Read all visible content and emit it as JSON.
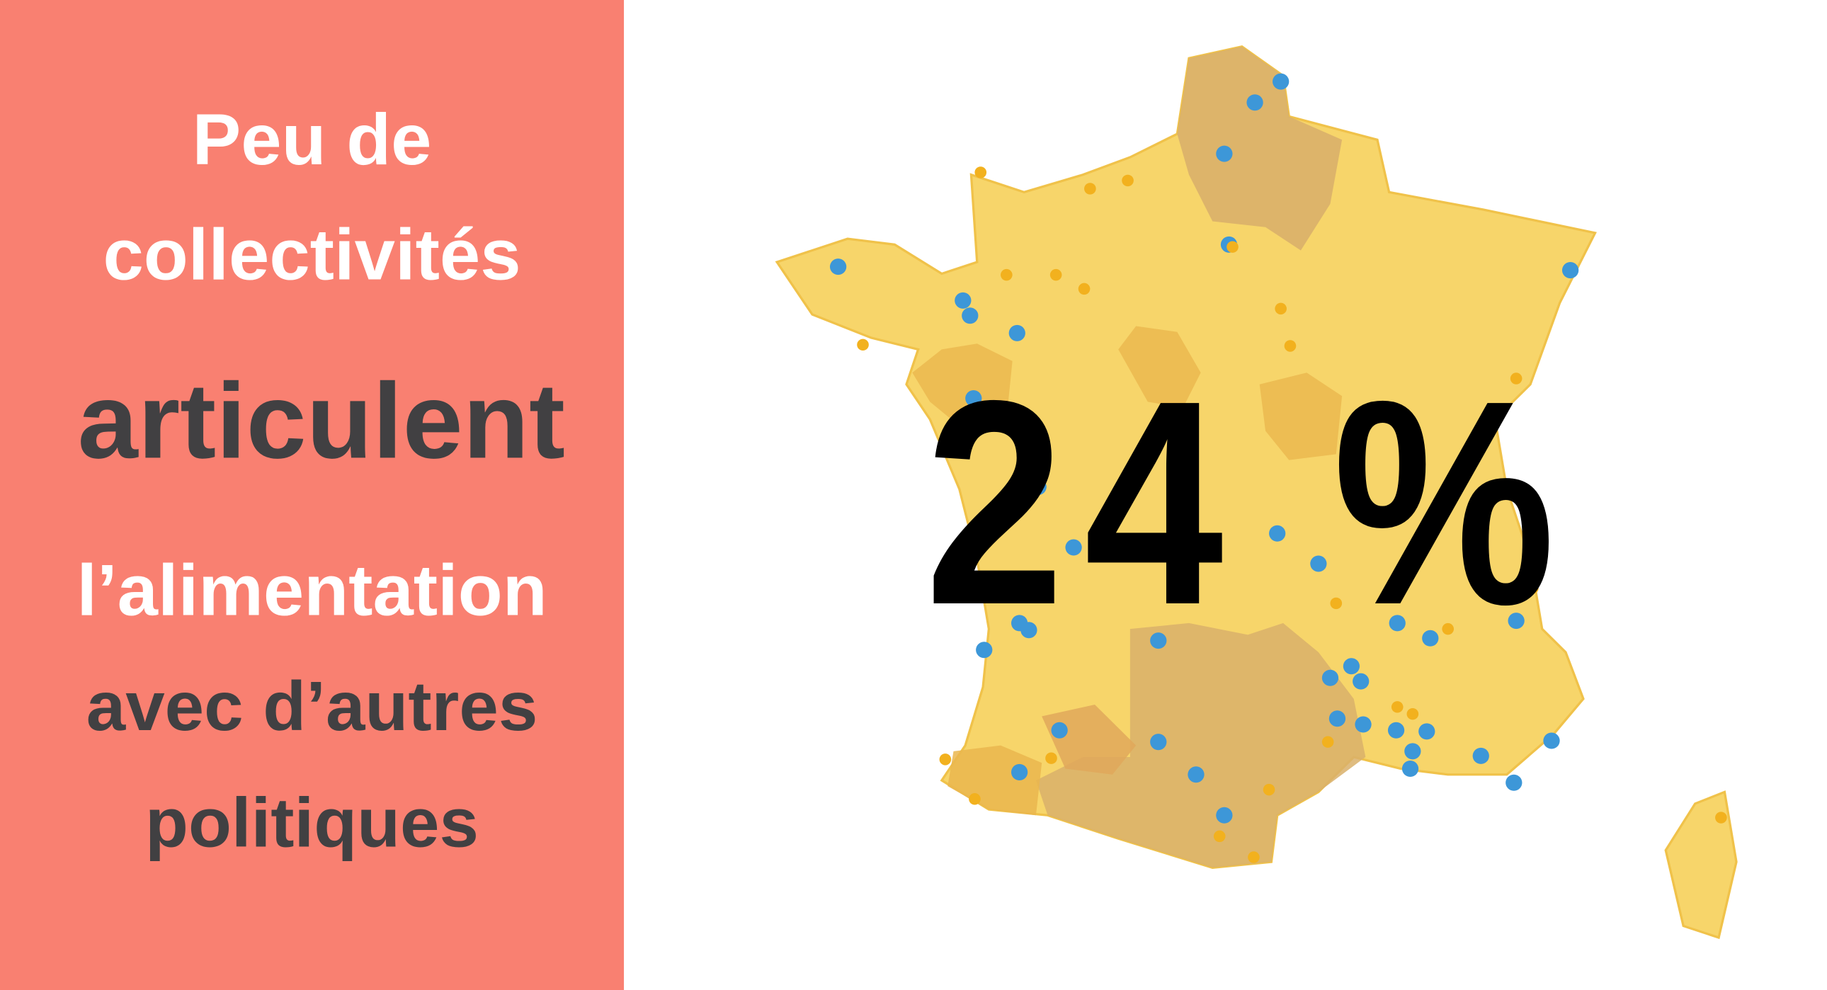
{
  "panel": {
    "lines": [
      "Peu de",
      "collectivités",
      "articulent",
      "l’alimentation",
      "avec d’autres",
      "politiques"
    ]
  },
  "map": {
    "headline": "24 %"
  }
}
